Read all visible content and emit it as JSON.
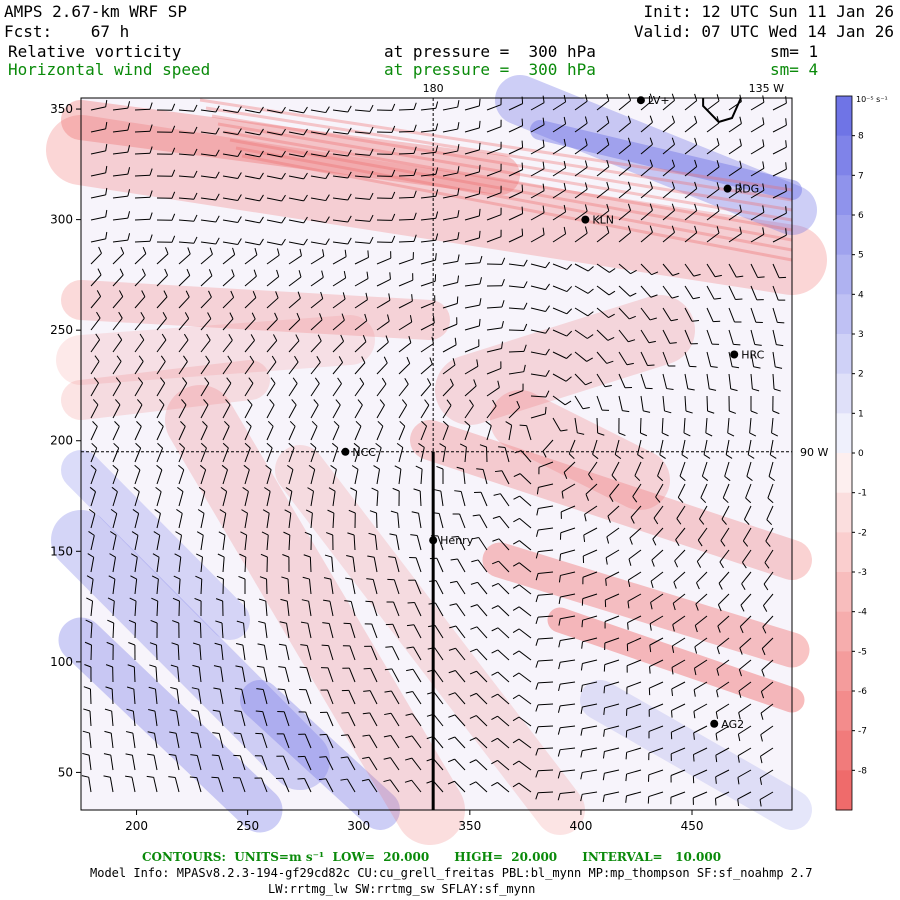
{
  "header": {
    "model": "AMPS 2.67-km WRF SP",
    "init": "Init: 12 UTC Sun 11 Jan 26",
    "forecast": "Fcst:    67 h",
    "valid": "Valid: 07 UTC Wed 14 Jan 26",
    "field1": {
      "name": "Relative vorticity",
      "level": "at pressure =  300 hPa",
      "sm": "sm= 1"
    },
    "field2": {
      "name": "Horizontal wind speed",
      "level": "at pressure =  300 hPa",
      "sm": "sm= 4"
    }
  },
  "map": {
    "x_ticks": [
      "200",
      "250",
      "300",
      "350",
      "400",
      "450"
    ],
    "y_ticks": [
      "350",
      "300",
      "250",
      "200",
      "150",
      "100",
      "50"
    ],
    "x_tick_values": [
      200,
      250,
      300,
      350,
      400,
      450
    ],
    "y_tick_values": [
      350,
      300,
      250,
      200,
      150,
      100,
      50
    ],
    "x_range": [
      175,
      495
    ],
    "y_range": [
      33,
      355
    ],
    "meridian_label": "180",
    "top_right_label": "135 W",
    "right_label": "90 W",
    "crosshair": {
      "x": 333.5,
      "y": 195
    },
    "section_line": {
      "x": 333.5,
      "y_from": 195,
      "y_to": 33
    },
    "stations": [
      {
        "name": "LV+",
        "x": 427,
        "y": 354
      },
      {
        "name": "RDG",
        "x": 466,
        "y": 314
      },
      {
        "name": "KLN",
        "x": 402,
        "y": 300
      },
      {
        "name": "HRC",
        "x": 469,
        "y": 239
      },
      {
        "name": "NCC",
        "x": 294,
        "y": 195
      },
      {
        "name": "Henry",
        "x": 333.5,
        "y": 155
      },
      {
        "name": "AG2",
        "x": 460,
        "y": 72
      }
    ]
  },
  "colorbar": {
    "unit_label": "10⁻⁵ s⁻¹",
    "labels": [
      "8",
      "7",
      "6",
      "5",
      "4",
      "3",
      "2",
      "1",
      "0",
      "-1",
      "-2",
      "-3",
      "-4",
      "-5",
      "-6",
      "-7",
      "-8"
    ],
    "positive_color": "#6f74e6",
    "negative_color": "#ef6b6b"
  },
  "footer": {
    "contours": "CONTOURS:  UNITS=m s⁻¹  LOW=  20.000      HIGH=  20.000      INTERVAL=   10.000",
    "model_info": "Model Info: MPASv8.2.3-194-gf29cd82c CU:cu_grell_freitas PBL:bl_mynn MP:mp_thompson SF:sf_noahmp 2.7",
    "model_info2": "LW:rrtmg_lw SW:rrtmg_sw SFLAY:sf_mynn"
  }
}
